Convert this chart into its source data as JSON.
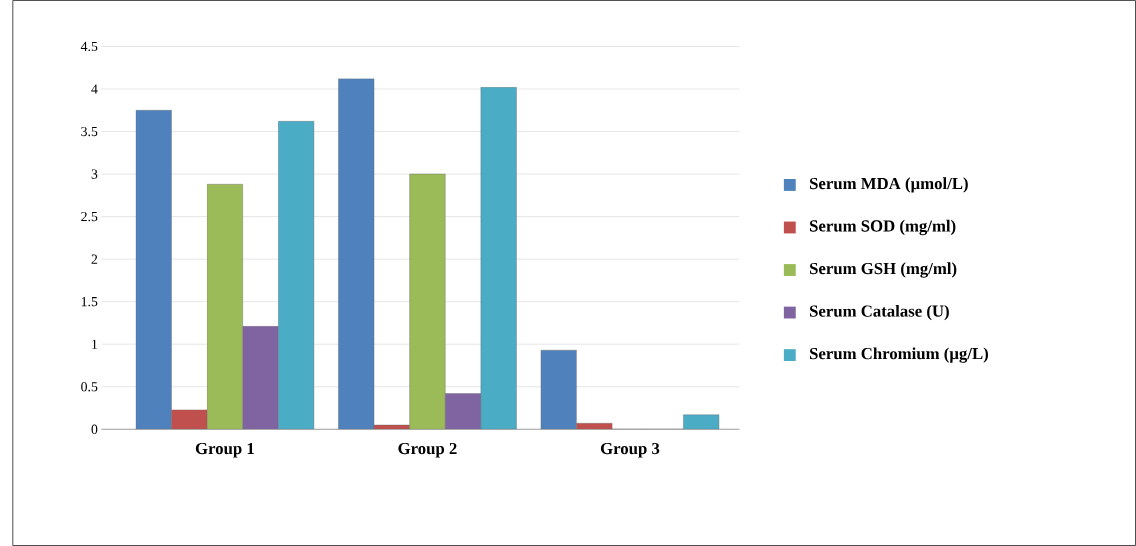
{
  "chart_data": {
    "type": "bar",
    "categories": [
      "Group 1",
      "Group 2",
      "Group 3"
    ],
    "series": [
      {
        "name": "Serum MDA (µmol/L)",
        "color": "#4f81bd",
        "values": [
          3.75,
          4.12,
          0.93
        ]
      },
      {
        "name": "Serum SOD (mg/ml)",
        "color": "#c0504d",
        "values": [
          0.23,
          0.05,
          0.07
        ]
      },
      {
        "name": "Serum GSH (mg/ml)",
        "color": "#9bbb59",
        "values": [
          2.88,
          3.0,
          0
        ]
      },
      {
        "name": "Serum Catalase (U)",
        "color": "#8064a2",
        "values": [
          1.21,
          0.42,
          0
        ]
      },
      {
        "name": "Serum Chromium (µg/L)",
        "color": "#4bacc6",
        "values": [
          3.62,
          4.02,
          0.17
        ]
      }
    ],
    "ylim": [
      0,
      4.5
    ],
    "yticks": [
      0,
      0.5,
      1,
      1.5,
      2,
      2.5,
      3,
      3.5,
      4,
      4.5
    ],
    "grid": "y",
    "legend": "right"
  }
}
